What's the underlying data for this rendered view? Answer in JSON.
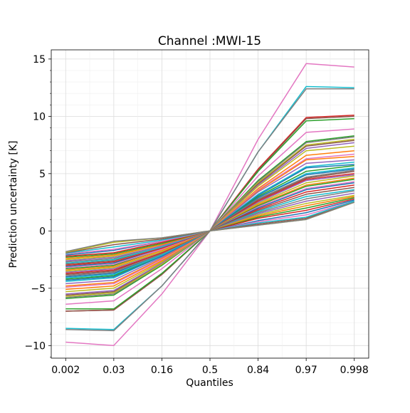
{
  "chart_data": {
    "type": "line",
    "title": "Channel :MWI-15",
    "xlabel": "Quantiles",
    "ylabel": "Prediction uncertainty [K]",
    "x": [
      "0.002",
      "0.03",
      "0.16",
      "0.5",
      "0.84",
      "0.97",
      "0.998"
    ],
    "ylim": [
      -11.1,
      15.8
    ],
    "yticks": [
      -10,
      -5,
      0,
      5,
      10,
      15
    ],
    "ytick_labels": [
      "−10",
      "−5",
      "0",
      "5",
      "10",
      "15"
    ],
    "grid": true,
    "legend": "none",
    "series": [
      {
        "color": "#e377c2",
        "values": [
          -9.7,
          -10.0,
          -5.5,
          0,
          8.0,
          14.6,
          14.3
        ]
      },
      {
        "color": "#17becf",
        "values": [
          -8.5,
          -8.6,
          -4.8,
          0,
          6.9,
          12.6,
          12.5
        ]
      },
      {
        "color": "#7f7f7f",
        "values": [
          -8.6,
          -8.7,
          -4.8,
          0,
          6.9,
          12.4,
          12.4
        ]
      },
      {
        "color": "#d62728",
        "values": [
          -7.0,
          -6.9,
          -3.8,
          0,
          5.4,
          9.9,
          10.1
        ]
      },
      {
        "color": "#8c564b",
        "values": [
          -7.0,
          -6.9,
          -3.8,
          0,
          5.3,
          9.8,
          10.0
        ]
      },
      {
        "color": "#2ca02c",
        "values": [
          -6.8,
          -6.8,
          -3.7,
          0,
          5.2,
          9.6,
          9.8
        ]
      },
      {
        "color": "#e377c2",
        "values": [
          -6.4,
          -6.1,
          -3.3,
          0,
          4.8,
          8.6,
          8.9
        ]
      },
      {
        "color": "#2ca02c",
        "values": [
          -5.9,
          -5.6,
          -3.0,
          0,
          4.4,
          7.8,
          8.3
        ]
      },
      {
        "color": "#7f7f7f",
        "values": [
          -5.8,
          -5.5,
          -2.9,
          0,
          4.3,
          7.7,
          8.2
        ]
      },
      {
        "color": "#bcbd22",
        "values": [
          -5.7,
          -5.4,
          -2.9,
          0,
          4.2,
          7.5,
          8.0
        ]
      },
      {
        "color": "#8c564b",
        "values": [
          -5.6,
          -5.3,
          -2.8,
          0,
          4.1,
          7.4,
          7.9
        ]
      },
      {
        "color": "#9467bd",
        "values": [
          -5.5,
          -5.2,
          -2.8,
          0,
          4.0,
          7.2,
          7.7
        ]
      },
      {
        "color": "#bcbd22",
        "values": [
          -5.3,
          -5.0,
          -2.7,
          0,
          3.9,
          7.0,
          7.4
        ]
      },
      {
        "color": "#ff7f0e",
        "values": [
          -5.1,
          -4.8,
          -2.6,
          0,
          3.7,
          6.6,
          7.0
        ]
      },
      {
        "color": "#e377c2",
        "values": [
          -4.9,
          -4.6,
          -2.5,
          0,
          3.6,
          6.3,
          6.7
        ]
      },
      {
        "color": "#ff7f0e",
        "values": [
          -4.8,
          -4.5,
          -2.4,
          0,
          3.5,
          6.2,
          6.5
        ]
      },
      {
        "color": "#9467bd",
        "values": [
          -4.6,
          -4.3,
          -2.3,
          0,
          3.4,
          5.9,
          6.2
        ]
      },
      {
        "color": "#17becf",
        "values": [
          -4.4,
          -4.1,
          -2.2,
          0,
          3.2,
          5.6,
          6.0
        ]
      },
      {
        "color": "#1f77b4",
        "values": [
          -4.3,
          -4.0,
          -2.2,
          0,
          3.1,
          5.5,
          5.8
        ]
      },
      {
        "color": "#2ca02c",
        "values": [
          -4.2,
          -3.9,
          -2.1,
          0,
          3.0,
          5.2,
          5.7
        ]
      },
      {
        "color": "#17becf",
        "values": [
          -4.1,
          -3.8,
          -2.1,
          0,
          2.9,
          5.0,
          5.5
        ]
      },
      {
        "color": "#1f77b4",
        "values": [
          -4.0,
          -3.7,
          -2.0,
          0,
          2.9,
          4.9,
          5.4
        ]
      },
      {
        "color": "#7f7f7f",
        "values": [
          -3.9,
          -3.6,
          -2.0,
          0,
          2.8,
          4.7,
          5.3
        ]
      },
      {
        "color": "#8c564b",
        "values": [
          -3.8,
          -3.5,
          -1.9,
          0,
          2.7,
          4.6,
          5.2
        ]
      },
      {
        "color": "#d62728",
        "values": [
          -3.7,
          -3.4,
          -1.9,
          0,
          2.6,
          4.5,
          5.0
        ]
      },
      {
        "color": "#9467bd",
        "values": [
          -3.6,
          -3.3,
          -1.8,
          0,
          2.5,
          4.4,
          4.9
        ]
      },
      {
        "color": "#bcbd22",
        "values": [
          -3.5,
          -3.2,
          -1.8,
          0,
          2.4,
          4.2,
          4.8
        ]
      },
      {
        "color": "#ff7f0e",
        "values": [
          -3.4,
          -3.1,
          -1.7,
          0,
          2.3,
          4.0,
          4.6
        ]
      },
      {
        "color": "#2ca02c",
        "values": [
          -3.3,
          -3.0,
          -1.6,
          0,
          2.2,
          3.9,
          4.5
        ]
      },
      {
        "color": "#e377c2",
        "values": [
          -3.2,
          -2.9,
          -1.6,
          0,
          2.1,
          3.7,
          4.3
        ]
      },
      {
        "color": "#1f77b4",
        "values": [
          -3.1,
          -2.8,
          -1.5,
          0,
          2.0,
          3.6,
          4.2
        ]
      },
      {
        "color": "#d62728",
        "values": [
          -3.0,
          -2.7,
          -1.5,
          0,
          1.9,
          3.4,
          4.0
        ]
      },
      {
        "color": "#8c564b",
        "values": [
          -2.9,
          -2.6,
          -1.4,
          0,
          1.8,
          3.2,
          3.8
        ]
      },
      {
        "color": "#17becf",
        "values": [
          -2.8,
          -2.5,
          -1.4,
          0,
          1.7,
          3.0,
          3.6
        ]
      },
      {
        "color": "#7f7f7f",
        "values": [
          -2.7,
          -2.4,
          -1.3,
          0,
          1.6,
          2.8,
          3.5
        ]
      },
      {
        "color": "#9467bd",
        "values": [
          -2.6,
          -2.3,
          -1.3,
          0,
          1.5,
          2.6,
          3.3
        ]
      },
      {
        "color": "#bcbd22",
        "values": [
          -2.5,
          -2.2,
          -1.2,
          0,
          1.4,
          2.4,
          3.1
        ]
      },
      {
        "color": "#ff7f0e",
        "values": [
          -2.4,
          -2.1,
          -1.2,
          0,
          1.3,
          2.2,
          3.0
        ]
      },
      {
        "color": "#2ca02c",
        "values": [
          -2.3,
          -2.0,
          -1.1,
          0,
          1.2,
          2.0,
          2.9
        ]
      },
      {
        "color": "#d62728",
        "values": [
          -2.2,
          -1.9,
          -1.0,
          0,
          1.1,
          1.8,
          2.8
        ]
      },
      {
        "color": "#1f77b4",
        "values": [
          -2.1,
          -1.7,
          -0.9,
          0,
          0.9,
          1.6,
          2.7
        ]
      },
      {
        "color": "#e377c2",
        "values": [
          -2.0,
          -1.6,
          -0.9,
          0,
          0.8,
          1.4,
          2.6
        ]
      },
      {
        "color": "#17becf",
        "values": [
          -1.95,
          -1.4,
          -0.8,
          0,
          0.7,
          1.2,
          2.6
        ]
      },
      {
        "color": "#8c564b",
        "values": [
          -1.9,
          -1.2,
          -0.7,
          0,
          0.6,
          1.1,
          2.5
        ]
      },
      {
        "color": "#bcbd22",
        "values": [
          -1.85,
          -1.0,
          -0.6,
          0,
          0.5,
          1.0,
          2.5
        ]
      },
      {
        "color": "#7f7f7f",
        "values": [
          -1.8,
          -0.9,
          -0.6,
          0,
          0.5,
          1.0,
          2.5
        ]
      }
    ]
  }
}
